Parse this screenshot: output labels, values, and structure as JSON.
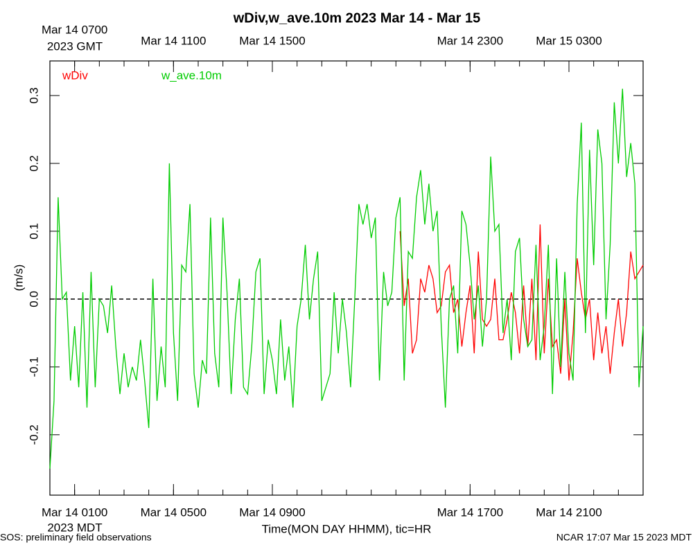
{
  "chart_data": {
    "type": "line",
    "title": "wDiv,w_ave.10m 2023 Mar 14 - Mar 15",
    "xlabel": "Time(MON DAY HHMM), tic=HR",
    "ylabel": "(m/s)",
    "x_sub_label": "2023 MDT",
    "x2_sub_label": "2023 GMT",
    "footer_left": "SOS: preliminary field observations",
    "footer_right": "NCAR 17:07 Mar 15 2023 MDT",
    "zero_line": true,
    "xlim": [
      0,
      1440
    ],
    "ylim": [
      -0.289,
      0.351
    ],
    "xticks": [
      0,
      60,
      120,
      180,
      240,
      300,
      360,
      420,
      480,
      540,
      600,
      660,
      720,
      780,
      840,
      900,
      960,
      1020,
      1080,
      1140,
      1200,
      1260,
      1320,
      1380,
      1440
    ],
    "x_tick_labels": [
      {
        "value": 60,
        "label": "Mar 14 0100"
      },
      {
        "value": 300,
        "label": "Mar 14 0500"
      },
      {
        "value": 540,
        "label": "Mar 14 0900"
      },
      {
        "value": 1020,
        "label": "Mar 14 1700"
      },
      {
        "value": 1260,
        "label": "Mar 14 2100"
      }
    ],
    "x2_tick_labels": [
      {
        "value": 60,
        "label": "Mar 14 0700"
      },
      {
        "value": 300,
        "label": "Mar 14 1100"
      },
      {
        "value": 540,
        "label": "Mar 14 1500"
      },
      {
        "value": 1020,
        "label": "Mar 14 2300"
      },
      {
        "value": 1260,
        "label": "Mar 15 0300"
      }
    ],
    "yticks": [
      -0.2,
      -0.1,
      {
        "value": 0,
        "label": "0.0"
      },
      0.1,
      0.2,
      0.3
    ],
    "x": [
      0,
      10,
      20,
      30,
      40,
      50,
      60,
      70,
      80,
      90,
      100,
      110,
      120,
      130,
      140,
      150,
      160,
      170,
      180,
      190,
      200,
      210,
      220,
      230,
      240,
      250,
      260,
      270,
      280,
      290,
      300,
      310,
      320,
      330,
      340,
      350,
      360,
      370,
      380,
      390,
      400,
      410,
      420,
      430,
      440,
      450,
      460,
      470,
      480,
      490,
      500,
      510,
      520,
      530,
      540,
      550,
      560,
      570,
      580,
      590,
      600,
      610,
      620,
      630,
      640,
      650,
      660,
      670,
      680,
      690,
      700,
      710,
      720,
      730,
      740,
      750,
      760,
      770,
      780,
      790,
      800,
      810,
      820,
      830,
      840,
      850,
      860,
      870,
      880,
      890,
      900,
      910,
      920,
      930,
      940,
      950,
      960,
      970,
      980,
      990,
      1000,
      1010,
      1020,
      1030,
      1040,
      1050,
      1060,
      1070,
      1080,
      1090,
      1100,
      1110,
      1120,
      1130,
      1140,
      1150,
      1160,
      1170,
      1180,
      1190,
      1200,
      1210,
      1220,
      1230,
      1240,
      1250,
      1260,
      1270,
      1280,
      1290,
      1300,
      1310,
      1320,
      1330,
      1340,
      1350,
      1360,
      1370,
      1380,
      1390,
      1400,
      1410,
      1420,
      1430,
      1440
    ],
    "series": [
      {
        "name": "wDiv",
        "color": "#ff0000",
        "values": [
          null,
          null,
          null,
          null,
          null,
          null,
          null,
          null,
          null,
          null,
          null,
          null,
          null,
          null,
          null,
          null,
          null,
          null,
          null,
          null,
          null,
          null,
          null,
          null,
          null,
          null,
          null,
          null,
          null,
          null,
          null,
          null,
          null,
          null,
          null,
          null,
          null,
          null,
          null,
          null,
          null,
          null,
          null,
          null,
          null,
          null,
          null,
          null,
          null,
          null,
          null,
          null,
          null,
          null,
          null,
          null,
          null,
          null,
          null,
          null,
          null,
          null,
          null,
          null,
          null,
          null,
          null,
          null,
          null,
          null,
          null,
          null,
          null,
          null,
          null,
          null,
          null,
          null,
          null,
          null,
          null,
          null,
          null,
          null,
          null,
          0.1,
          -0.01,
          0.03,
          -0.08,
          -0.06,
          0.03,
          0.01,
          0.05,
          0.03,
          -0.02,
          -0.01,
          0.04,
          0.05,
          -0.02,
          0.0,
          -0.07,
          -0.02,
          0.02,
          -0.08,
          0.07,
          -0.03,
          -0.04,
          -0.03,
          0.03,
          -0.06,
          -0.06,
          -0.03,
          0.01,
          -0.02,
          -0.08,
          0.02,
          -0.07,
          0.03,
          -0.09,
          0.11,
          -0.08,
          0.03,
          -0.07,
          -0.06,
          -0.11,
          0.0,
          -0.12,
          -0.05,
          0.06,
          0.01,
          -0.03,
          0.0,
          -0.09,
          -0.02,
          -0.08,
          -0.04,
          -0.11,
          -0.05,
          0.0,
          -0.07,
          -0.02,
          0.07,
          0.03,
          0.04,
          0.05
        ]
      },
      {
        "name": "w_ave.10m",
        "color": "#00cc00",
        "values": [
          -0.25,
          -0.15,
          0.15,
          0.0,
          0.01,
          -0.12,
          -0.04,
          -0.13,
          0.01,
          -0.16,
          0.04,
          -0.13,
          0.0,
          -0.01,
          -0.05,
          0.02,
          -0.07,
          -0.14,
          -0.08,
          -0.13,
          -0.1,
          -0.12,
          -0.06,
          -0.12,
          -0.19,
          0.03,
          -0.15,
          -0.07,
          -0.13,
          0.2,
          -0.05,
          -0.15,
          0.05,
          0.04,
          0.14,
          -0.11,
          -0.16,
          -0.09,
          -0.11,
          0.12,
          -0.08,
          -0.13,
          0.12,
          0.01,
          -0.14,
          -0.03,
          0.03,
          -0.13,
          -0.14,
          -0.07,
          0.04,
          0.06,
          -0.14,
          -0.06,
          -0.09,
          -0.14,
          -0.03,
          -0.12,
          -0.07,
          -0.16,
          -0.04,
          0.0,
          0.08,
          -0.03,
          0.03,
          0.07,
          -0.15,
          -0.13,
          -0.11,
          0.01,
          -0.08,
          0.0,
          -0.05,
          -0.13,
          0.0,
          0.14,
          0.11,
          0.14,
          0.09,
          0.12,
          -0.12,
          0.04,
          -0.01,
          0.01,
          0.12,
          0.15,
          -0.12,
          0.07,
          0.06,
          0.15,
          0.19,
          0.11,
          0.17,
          0.1,
          0.13,
          -0.04,
          -0.16,
          0.0,
          0.02,
          -0.08,
          0.13,
          0.11,
          0.05,
          -0.03,
          0.02,
          -0.07,
          0.0,
          0.21,
          0.1,
          0.11,
          -0.05,
          0.0,
          -0.09,
          0.07,
          0.09,
          -0.03,
          -0.07,
          -0.06,
          0.08,
          -0.09,
          -0.04,
          0.08,
          -0.14,
          0.06,
          -0.1,
          0.04,
          -0.08,
          -0.12,
          0.14,
          0.26,
          -0.05,
          0.22,
          0.05,
          0.25,
          0.2,
          -0.03,
          0.08,
          0.29,
          0.2,
          0.31,
          0.18,
          0.23,
          0.17,
          -0.13,
          -0.04
        ]
      }
    ]
  }
}
